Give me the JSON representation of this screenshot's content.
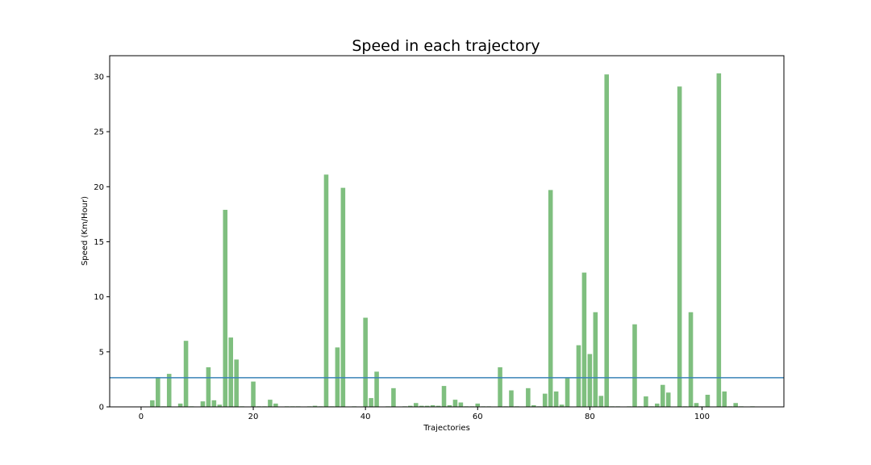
{
  "chart_data": {
    "type": "bar",
    "title": "Speed in each trajectory",
    "xlabel": "Trajectories",
    "ylabel": "Speed (Km/Hour)",
    "xlim": [
      -5.6,
      114.6
    ],
    "ylim": [
      0,
      31.9
    ],
    "xticks": [
      0,
      20,
      40,
      60,
      80,
      100
    ],
    "yticks": [
      0,
      5,
      10,
      15,
      20,
      25,
      30
    ],
    "grid": false,
    "bar_color": "#7fbf7f",
    "reference_line": {
      "y": 2.65,
      "color": "#3a83b7"
    },
    "x": [
      0,
      1,
      2,
      3,
      4,
      5,
      6,
      7,
      8,
      9,
      10,
      11,
      12,
      13,
      14,
      15,
      16,
      17,
      18,
      19,
      20,
      21,
      22,
      23,
      24,
      25,
      26,
      27,
      28,
      29,
      30,
      31,
      32,
      33,
      34,
      35,
      36,
      37,
      38,
      39,
      40,
      41,
      42,
      43,
      44,
      45,
      46,
      47,
      48,
      49,
      50,
      51,
      52,
      53,
      54,
      55,
      56,
      57,
      58,
      59,
      60,
      61,
      62,
      63,
      64,
      65,
      66,
      67,
      68,
      69,
      70,
      71,
      72,
      73,
      74,
      75,
      76,
      77,
      78,
      79,
      80,
      81,
      82,
      83,
      84,
      85,
      86,
      87,
      88,
      89,
      90,
      91,
      92,
      93,
      94,
      95,
      96,
      97,
      98,
      99,
      100,
      101,
      102,
      103,
      104,
      105,
      106,
      107,
      108,
      109
    ],
    "values": [
      0,
      0,
      0.6,
      2.7,
      0.05,
      3.0,
      0,
      0.3,
      6.0,
      0.05,
      0,
      0.5,
      3.6,
      0.6,
      0.2,
      17.9,
      6.3,
      4.3,
      0.05,
      0,
      2.3,
      0.05,
      0.05,
      0.65,
      0.3,
      0,
      0.05,
      0.05,
      0.05,
      0,
      0.05,
      0.1,
      0.05,
      21.1,
      0.05,
      5.4,
      19.9,
      0,
      0.05,
      0,
      8.1,
      0.8,
      3.2,
      0,
      0.05,
      1.7,
      0,
      0.05,
      0.1,
      0.35,
      0.1,
      0.1,
      0.15,
      0.1,
      1.9,
      0.15,
      0.65,
      0.4,
      0.05,
      0.05,
      0.3,
      0.05,
      0.05,
      0,
      3.6,
      0.05,
      1.5,
      0.05,
      0,
      1.7,
      0.15,
      0.05,
      1.2,
      19.7,
      1.4,
      0.2,
      2.6,
      0,
      5.6,
      12.2,
      4.8,
      8.6,
      1.0,
      30.2,
      0.05,
      0.05,
      0,
      0.05,
      7.5,
      0.05,
      0.95,
      0.05,
      0.3,
      2.0,
      1.3,
      0,
      29.1,
      0.05,
      8.6,
      0.35,
      0.05,
      1.1,
      0,
      30.3,
      1.4,
      0.05,
      0.35,
      0.05,
      0,
      0.05
    ]
  }
}
